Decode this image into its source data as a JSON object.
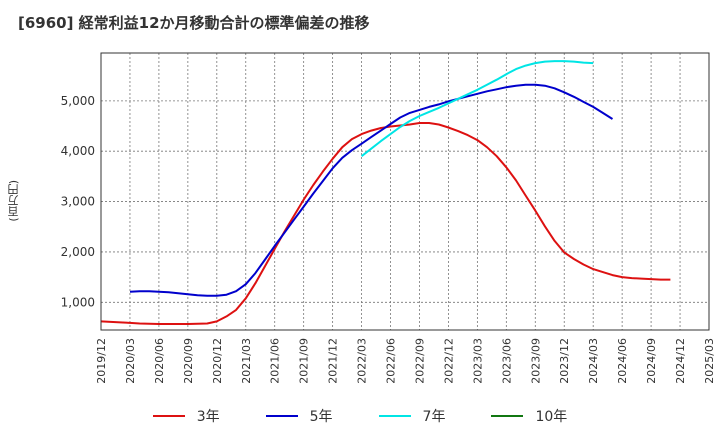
{
  "header": {
    "title": "[6960]  経常利益12か月移動合計の標準偏差の推移"
  },
  "chart_data": {
    "type": "line",
    "title": "[6960]  経常利益12か月移動合計の標準偏差の推移",
    "xlabel": "",
    "ylabel": "(百万円)",
    "ylim": [
      450,
      5950
    ],
    "yticks": [
      1000,
      2000,
      3000,
      4000,
      5000
    ],
    "ytick_labels": [
      "1,000",
      "2,000",
      "3,000",
      "4,000",
      "5,000"
    ],
    "xticks": [
      "2019/12",
      "2020/03",
      "2020/06",
      "2020/09",
      "2020/12",
      "2021/03",
      "2021/06",
      "2021/09",
      "2021/12",
      "2022/03",
      "2022/06",
      "2022/09",
      "2022/12",
      "2023/03",
      "2023/06",
      "2023/09",
      "2023/12",
      "2024/03",
      "2024/06",
      "2024/09",
      "2024/12",
      "2025/03"
    ],
    "grid": true,
    "legend_position": "bottom",
    "series": [
      {
        "name": "3年",
        "color": "#dd1111",
        "start": "2019/12",
        "values": [
          620,
          610,
          600,
          590,
          580,
          575,
          570,
          570,
          570,
          570,
          575,
          580,
          620,
          720,
          850,
          1080,
          1380,
          1720,
          2060,
          2400,
          2720,
          3040,
          3330,
          3600,
          3850,
          4080,
          4240,
          4340,
          4410,
          4460,
          4490,
          4510,
          4530,
          4560,
          4560,
          4530,
          4470,
          4400,
          4320,
          4220,
          4080,
          3900,
          3680,
          3420,
          3120,
          2820,
          2510,
          2220,
          1990,
          1860,
          1750,
          1660,
          1600,
          1540,
          1500,
          1480,
          1470,
          1460,
          1450,
          1450
        ]
      },
      {
        "name": "5年",
        "color": "#0000cc",
        "start": "2020/03",
        "values": [
          1210,
          1220,
          1220,
          1210,
          1200,
          1180,
          1160,
          1140,
          1130,
          1130,
          1150,
          1220,
          1360,
          1580,
          1850,
          2120,
          2380,
          2640,
          2900,
          3160,
          3410,
          3660,
          3870,
          4020,
          4150,
          4280,
          4410,
          4540,
          4670,
          4760,
          4820,
          4880,
          4930,
          4990,
          5040,
          5090,
          5140,
          5190,
          5230,
          5270,
          5300,
          5320,
          5320,
          5300,
          5250,
          5170,
          5080,
          4980,
          4880,
          4760,
          4640
        ]
      },
      {
        "name": "7年",
        "color": "#00e5e5",
        "start": "2022/03",
        "values": [
          3900,
          4050,
          4200,
          4340,
          4480,
          4600,
          4700,
          4780,
          4860,
          4950,
          5040,
          5130,
          5220,
          5320,
          5420,
          5530,
          5630,
          5700,
          5750,
          5780,
          5790,
          5790,
          5780,
          5760,
          5750
        ]
      },
      {
        "name": "10年",
        "color": "#117711",
        "start": "2022/12",
        "values": []
      }
    ]
  }
}
